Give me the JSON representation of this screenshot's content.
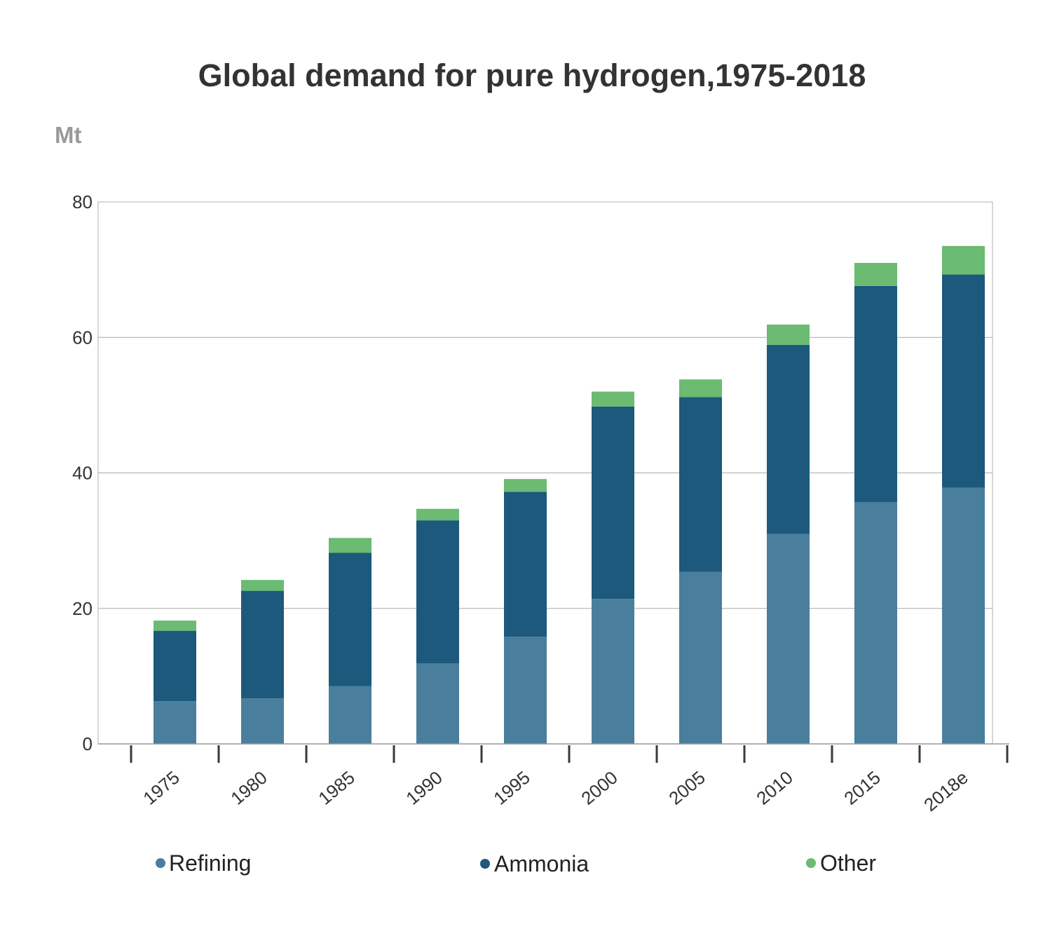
{
  "chart_data": {
    "type": "bar",
    "stacked": true,
    "title": "Global demand for pure hydrogen,1975-2018",
    "ylabel": "Mt",
    "categories": [
      "1975",
      "1980",
      "1985",
      "1990",
      "1995",
      "2000",
      "2005",
      "2010",
      "2015",
      "2018e"
    ],
    "series": [
      {
        "name": "Refining",
        "color": "#4a7e9d",
        "values": [
          6.3,
          6.7,
          8.5,
          11.9,
          15.8,
          21.4,
          25.4,
          31.0,
          35.7,
          37.8
        ]
      },
      {
        "name": "Ammonia",
        "color": "#1d597c",
        "values": [
          10.4,
          15.9,
          19.7,
          21.1,
          21.4,
          28.4,
          25.8,
          27.9,
          31.9,
          31.5
        ]
      },
      {
        "name": "Other",
        "color": "#6bbb72",
        "values": [
          1.5,
          1.6,
          2.2,
          1.7,
          1.9,
          2.2,
          2.6,
          3.0,
          3.4,
          4.2
        ]
      }
    ],
    "ylim": [
      0,
      80
    ],
    "yticks": [
      0,
      20,
      40,
      60,
      80
    ],
    "grid": true,
    "legend": "bottom"
  }
}
